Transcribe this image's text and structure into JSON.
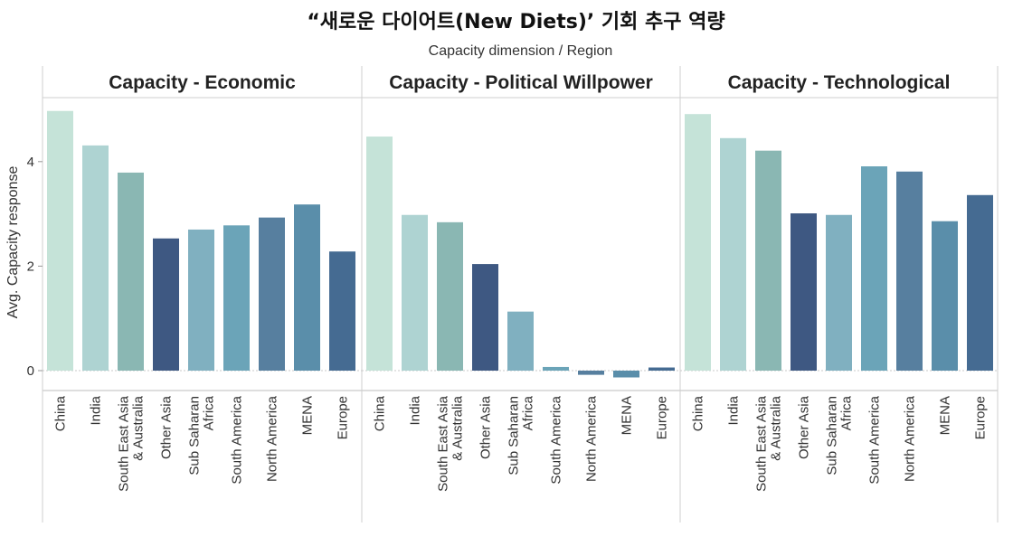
{
  "title": "“새로운 다이어트(New Diets)’ 기회 추구 역량",
  "subtitle": "Capacity dimension  /  Region",
  "chart_data": {
    "type": "bar",
    "title": "“새로운 다이어트(New Diets)’ 기회 추구 역량",
    "subtitle": "Capacity dimension  /  Region",
    "ylabel": "Avg. Capacity response",
    "ylim": [
      -0.4,
      5.1
    ],
    "yticks": [
      "0",
      "2",
      "4"
    ],
    "grid": false,
    "categories": [
      [
        "China"
      ],
      [
        "India"
      ],
      [
        "South East Asia",
        "& Australia"
      ],
      [
        "Other Asia"
      ],
      [
        "Sub Saharan",
        "Africa"
      ],
      [
        "South America"
      ],
      [
        "North America"
      ],
      [
        "MENA"
      ],
      [
        "Europe"
      ]
    ],
    "colors": [
      "#c5e3d8",
      "#aed3d2",
      "#8ab7b3",
      "#3e5882",
      "#80b0c0",
      "#6ba4b8",
      "#577f9f",
      "#5a8eaa",
      "#456b92"
    ],
    "facets": [
      {
        "name": "Capacity - Economic",
        "values": [
          4.97,
          4.31,
          3.79,
          2.53,
          2.7,
          2.78,
          2.93,
          3.18,
          2.28
        ]
      },
      {
        "name": "Capacity - Political Willpower",
        "values": [
          4.48,
          2.98,
          2.84,
          2.04,
          1.13,
          0.07,
          -0.08,
          -0.13,
          0.06
        ]
      },
      {
        "name": "Capacity - Technological",
        "values": [
          4.91,
          4.45,
          4.21,
          3.01,
          2.98,
          3.91,
          3.81,
          2.86,
          3.36
        ]
      }
    ]
  }
}
